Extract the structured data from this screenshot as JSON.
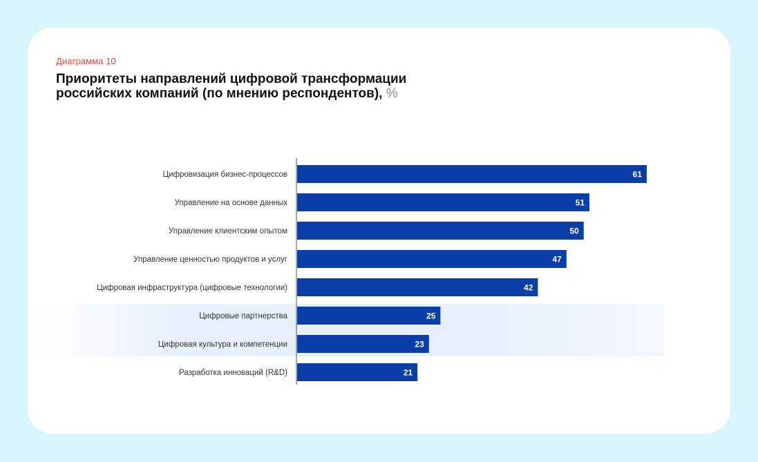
{
  "caption": "Диаграмма 10",
  "title_line1": "Приоритеты направлений цифровой трансформации",
  "title_line2": "российских компаний (по мнению респондентов),",
  "title_unit": "%",
  "colors": {
    "background": "#d9f6fc",
    "card": "#ffffff",
    "caption": "#e8473f",
    "bar": "#0b3ea6",
    "highlight_band": "#e8f0fc",
    "axis": "#555555"
  },
  "chart_data": {
    "type": "bar",
    "orientation": "horizontal",
    "categories": [
      "Цифровизация бизнес-процессов",
      "Управление на основе данных",
      "Управление клиентским опытом",
      "Управление ценностью продуктов и услуг",
      "Цифровая инфраструктура (цифровые технологии)",
      "Цифровые партнерства",
      "Цифровая культура и компетенции",
      "Разработка инноваций (R&D)"
    ],
    "values": [
      61,
      51,
      50,
      47,
      42,
      25,
      23,
      21
    ],
    "data_labels": [
      "61",
      "51",
      "50",
      "47",
      "42",
      "25",
      "23",
      "21"
    ],
    "xlim": [
      0,
      61
    ],
    "highlighted_categories": [
      "Цифровая культура и компетенции",
      "Разработка инноваций (R&D)"
    ],
    "grid": false,
    "legend": "none"
  }
}
